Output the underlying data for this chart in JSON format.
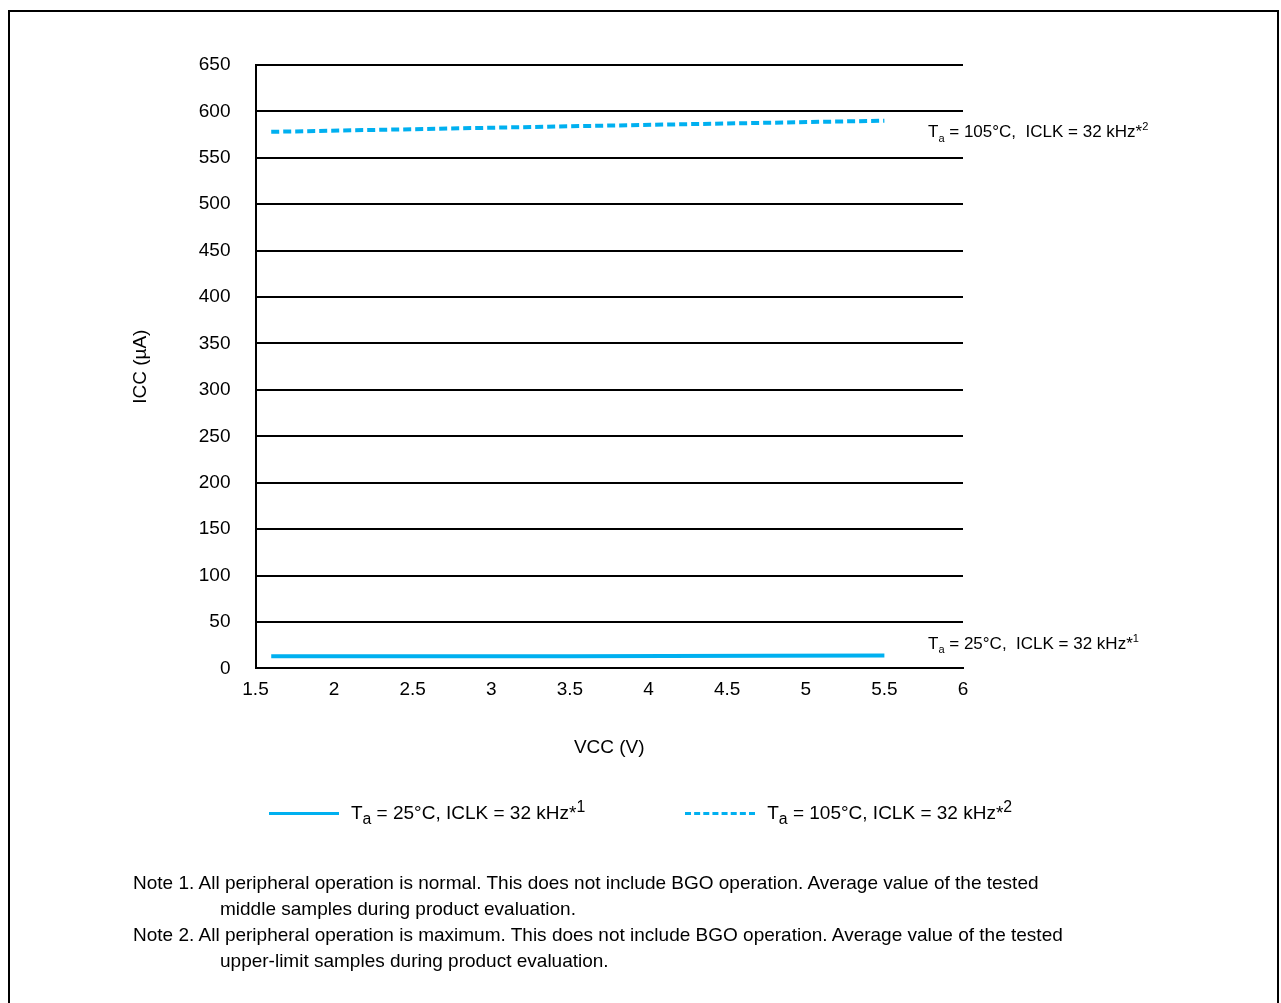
{
  "chart_data": {
    "type": "line",
    "xlabel": "VCC (V)",
    "ylabel": "ICC (µA)",
    "xlim": [
      1.5,
      6
    ],
    "xticks": [
      1.5,
      2,
      2.5,
      3,
      3.5,
      4,
      4.5,
      5,
      5.5,
      6
    ],
    "ylim": [
      0,
      650
    ],
    "yticks": [
      0,
      50,
      100,
      150,
      200,
      250,
      300,
      350,
      400,
      450,
      500,
      550,
      600,
      650
    ],
    "grid": "y",
    "legend": "bottom",
    "marker": "none",
    "series": [
      {
        "name": "T$_{a}$ = 25°C, ICLK = 32 kHz*$^{1}$",
        "color": "#00b0f0",
        "line_style": "solid",
        "x": [
          1.6,
          3.5,
          5.5
        ],
        "values": [
          13,
          13,
          14
        ]
      },
      {
        "name": "T$_{a}$ = 105°C, ICLK = 32 kHz*$^{2}$",
        "color": "#00b0f0",
        "line_style": "dashed",
        "x": [
          1.6,
          3.5,
          5.5
        ],
        "values": [
          578,
          584,
          590
        ]
      }
    ],
    "annotations": [
      "T$_{a}$ = 105°C,  ICLK = 32 kHz*$^{2}$",
      "T$_{a}$ = 25°C,  ICLK = 32 kHz*$^{1}$",
      "Note 1. All peripheral operation is normal. This does not include BGO operation. Average value of the tested middle samples during product evaluation.",
      "Note 2. All peripheral operation is maximum. This does not include BGO operation. Average value of the tested upper-limit samples during product evaluation."
    ]
  }
}
